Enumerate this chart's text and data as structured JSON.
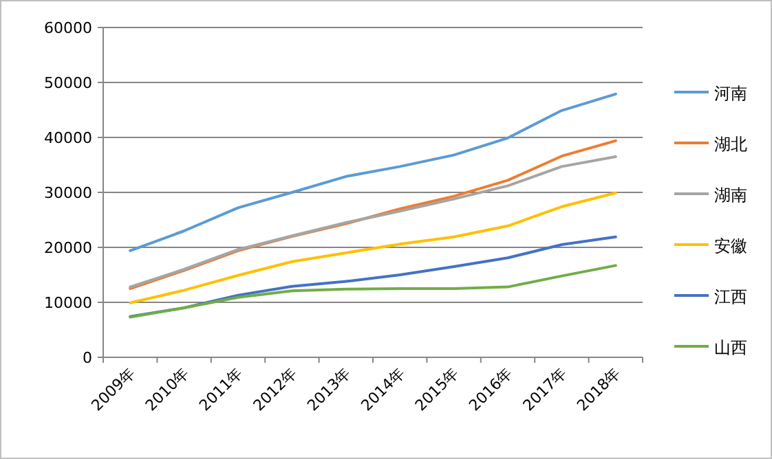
{
  "chart_data": {
    "type": "line",
    "categories": [
      "2009年",
      "2010年",
      "2011年",
      "2012年",
      "2013年",
      "2014年",
      "2015年",
      "2016年",
      "2017年",
      "2018年"
    ],
    "series": [
      {
        "name": "河南",
        "color": "#5b9bd5",
        "values": [
          19400,
          23000,
          27200,
          30000,
          32900,
          34700,
          36800,
          39900,
          44900,
          47900
        ]
      },
      {
        "name": "湖北",
        "color": "#ed7d31",
        "values": [
          12500,
          15800,
          19400,
          22000,
          24300,
          27000,
          29300,
          32200,
          36600,
          39400
        ]
      },
      {
        "name": "湖南",
        "color": "#a5a5a5",
        "values": [
          12800,
          16000,
          19600,
          22100,
          24500,
          26600,
          28800,
          31200,
          34700,
          36500
        ]
      },
      {
        "name": "安徽",
        "color": "#ffc000",
        "values": [
          9900,
          12200,
          14900,
          17400,
          19000,
          20600,
          21900,
          23900,
          27400,
          29900
        ]
      },
      {
        "name": "江西",
        "color": "#4472c4",
        "values": [
          7400,
          9000,
          11300,
          12900,
          13800,
          15000,
          16500,
          18100,
          20500,
          21900
        ]
      },
      {
        "name": "山西",
        "color": "#70ad47",
        "values": [
          7300,
          9000,
          10900,
          12100,
          12400,
          12500,
          12500,
          12800,
          14800,
          16700
        ]
      }
    ],
    "ylim": [
      0,
      60000
    ],
    "yticks": [
      0,
      10000,
      20000,
      30000,
      40000,
      50000,
      60000
    ],
    "grid": "y",
    "legend": "right",
    "marker": "none",
    "line_style": "solid"
  }
}
